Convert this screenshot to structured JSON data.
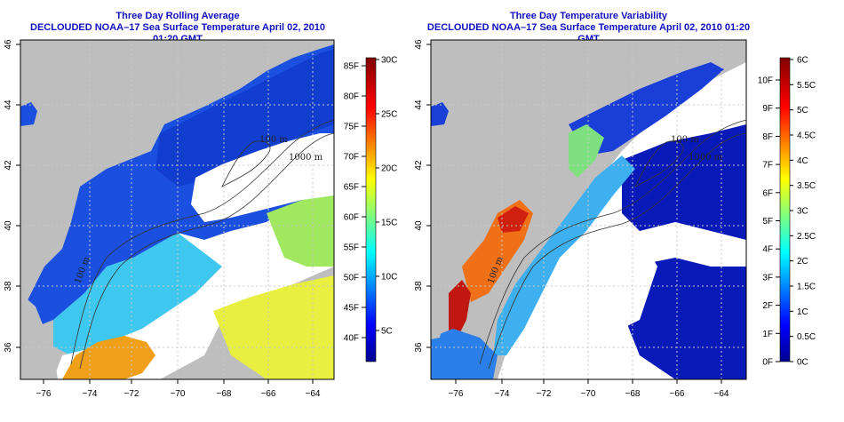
{
  "colors": {
    "land": "#bebebe",
    "nodata": "#ffffff",
    "title": "#1010c0",
    "contour": "#333333"
  },
  "maps": [
    {
      "title_line1": "Three Day Rolling Average",
      "title_line2": "DECLOUDED NOAA–17 Sea Surface Temperature April 02, 2010 01:20 GMT",
      "lon_ticks": [
        "−76",
        "−74",
        "−72",
        "−70",
        "−68",
        "−66",
        "−64"
      ],
      "lat_ticks": [
        "36",
        "38",
        "40",
        "42",
        "44",
        "46"
      ],
      "contour_labels": [
        "100 m",
        "1000 m",
        "100 m"
      ],
      "colorbar_left_labels": [
        "40F",
        "45F",
        "50F",
        "55F",
        "60F",
        "65F",
        "70F",
        "75F",
        "80F",
        "85F"
      ],
      "colorbar_right_labels": [
        "5C",
        "10C",
        "15C",
        "20C",
        "25C",
        "30C"
      ]
    },
    {
      "title_line1": "Three Day Temperature Variability",
      "title_line2": "DECLOUDED NOAA–17 Sea Surface Temperature April 02, 2010 01:20 GMT",
      "lon_ticks": [
        "−76",
        "−74",
        "−72",
        "−70",
        "−68",
        "−66",
        "−64"
      ],
      "lat_ticks": [
        "36",
        "38",
        "40",
        "42",
        "44",
        "46"
      ],
      "contour_labels": [
        "100 m",
        "1000 m",
        "100 m"
      ],
      "colorbar_left_labels": [
        "0F",
        "1F",
        "2F",
        "3F",
        "4F",
        "5F",
        "6F",
        "7F",
        "8F",
        "9F",
        "10F"
      ],
      "colorbar_right_labels": [
        "0C",
        "0.5C",
        "1C",
        "1.5C",
        "2C",
        "2.5C",
        "3C",
        "3.5C",
        "4C",
        "4.5C",
        "5C",
        "5.5C",
        "6C"
      ]
    }
  ]
}
